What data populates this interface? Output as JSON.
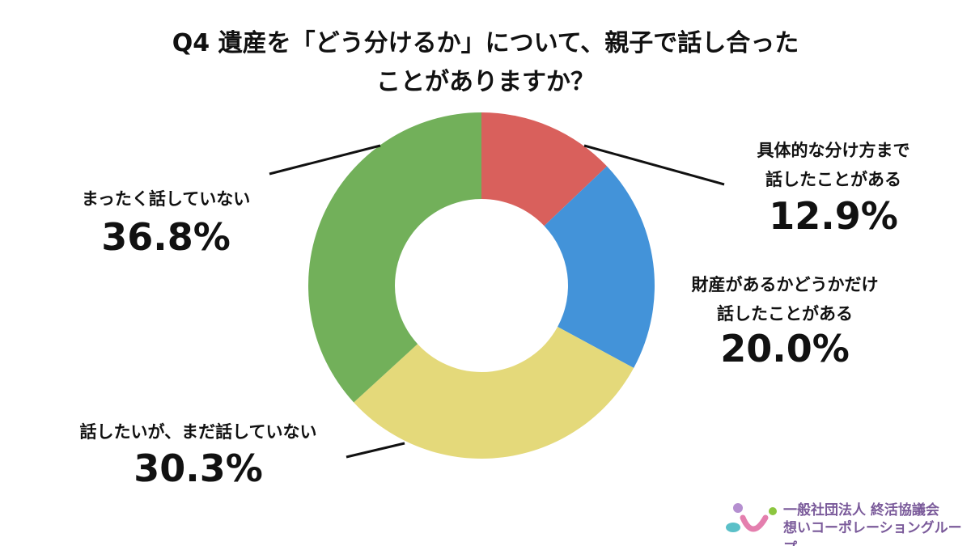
{
  "chart_data": {
    "type": "donut",
    "title": [
      "Q4 遺産を「どう分けるか」について、親子で話し合った",
      "ことがありますか？"
    ],
    "categories": [
      "具体的な分け方まで\n話したことがある",
      "財産があるかどうかだけ\n話したことがある",
      "話したいが、まだ話していない",
      "まったく話していない"
    ],
    "values": [
      12.9,
      20.0,
      30.3,
      36.8
    ],
    "value_labels": [
      "12.9%",
      "20.0%",
      "30.3%",
      "36.8%"
    ],
    "colors": [
      "#d9605c",
      "#4393d9",
      "#e4d97a",
      "#72b05a"
    ]
  },
  "logo": {
    "lines": [
      "一般社団法人 終活協議会",
      "想いコーポレーショングループ"
    ]
  }
}
